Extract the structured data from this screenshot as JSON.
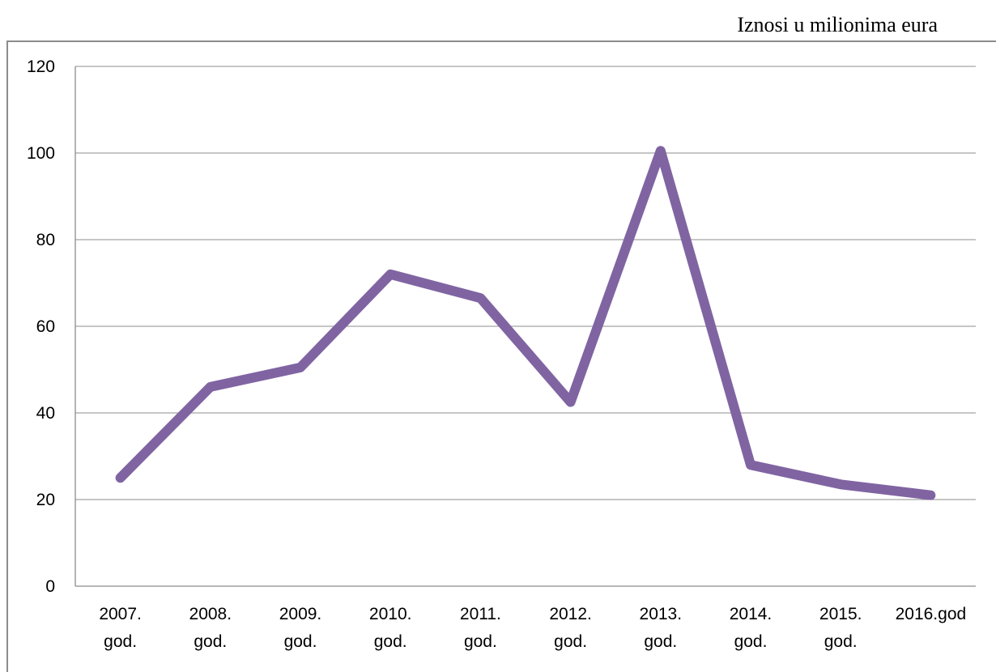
{
  "unit_note": "Iznosi u milionima eura",
  "chart_data": {
    "type": "line",
    "title": "",
    "xlabel": "",
    "ylabel": "",
    "categories": [
      [
        "2007.",
        "god."
      ],
      [
        "2008.",
        "god."
      ],
      [
        "2009.",
        "god."
      ],
      [
        "2010.",
        "god."
      ],
      [
        "2011.",
        "god."
      ],
      [
        "2012.",
        "god."
      ],
      [
        "2013.",
        "god."
      ],
      [
        "2014.",
        "god."
      ],
      [
        "2015.",
        "god."
      ],
      [
        "2016.god"
      ]
    ],
    "series": [
      {
        "values": [
          25,
          46,
          50.5,
          72,
          66.5,
          42.5,
          100.5,
          28,
          23.5,
          21
        ],
        "color": "#8064a2"
      }
    ],
    "ylim": [
      0,
      120
    ],
    "yticks": [
      0,
      20,
      40,
      60,
      80,
      100,
      120
    ],
    "grid": true,
    "legend": "none"
  }
}
